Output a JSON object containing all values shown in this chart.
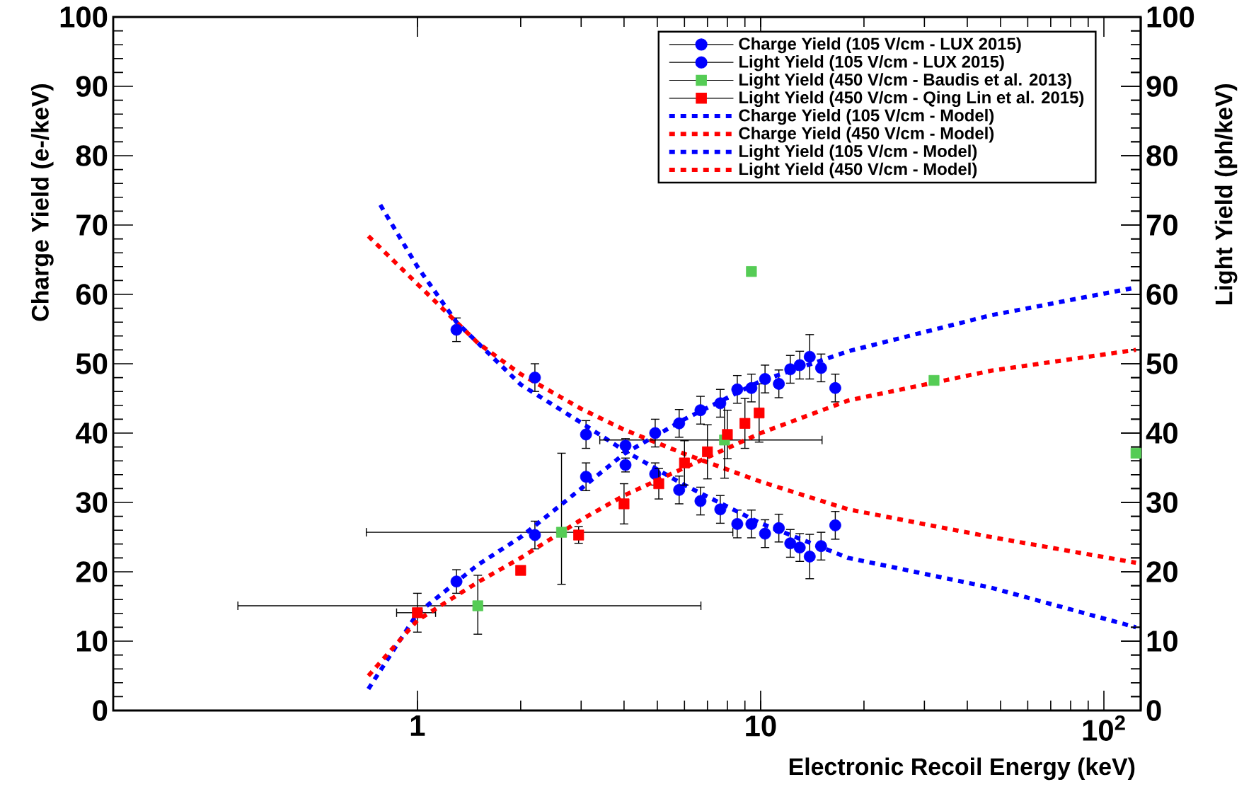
{
  "chart_data": {
    "type": "scatter",
    "xlabel": "Electronic Recoil Energy (keV)",
    "ylabel": "Charge Yield (e-/keV)",
    "y2label": "Light Yield (ph/keV)",
    "log": "x",
    "legend": "top right",
    "xlim": [
      0.13,
      128
    ],
    "xticks": [
      1,
      10,
      {
        "value": 100,
        "label": "10$^{2}$"
      }
    ],
    "ylim": [
      0,
      100
    ],
    "yticks": [
      0,
      10,
      20,
      30,
      40,
      50,
      60,
      70,
      80,
      90,
      100
    ],
    "y2lim": [
      0,
      100
    ],
    "y2ticks": [
      0,
      10,
      20,
      30,
      40,
      50,
      60,
      70,
      80,
      90,
      100
    ],
    "series": [
      {
        "name": "Charge Yield (105 V/cm - LUX 2015)",
        "color": "#0000ff",
        "marker": "circle",
        "x": [
          1.3,
          2.2,
          3.1,
          4.04,
          4.93,
          5.79,
          6.68,
          7.63,
          8.55,
          9.4,
          10.3,
          11.3,
          12.2,
          13.0,
          13.9,
          15.0,
          16.5
        ],
        "values": [
          54.9,
          48.0,
          39.8,
          35.4,
          34.1,
          31.8,
          30.2,
          29.0,
          26.9,
          26.9,
          25.5,
          26.3,
          24.1,
          23.5,
          22.2,
          23.7,
          26.7
        ],
        "errors": [
          1.7,
          2,
          2,
          1,
          1.6,
          2,
          2,
          2,
          2,
          2,
          2,
          2,
          2,
          2,
          3.2,
          2,
          2
        ]
      },
      {
        "name": "Light Yield (105 V/cm - LUX 2015)",
        "axis": "y2",
        "color": "#0000ff",
        "marker": "circle",
        "x": [
          1.3,
          2.2,
          3.1,
          4.04,
          4.93,
          5.79,
          6.68,
          7.63,
          8.55,
          9.4,
          10.3,
          11.3,
          12.2,
          13.0,
          13.9,
          15.0,
          16.5
        ],
        "values": [
          18.6,
          25.3,
          33.7,
          38.2,
          40.0,
          41.4,
          43.3,
          44.3,
          46.3,
          46.5,
          47.8,
          47.1,
          49.2,
          49.8,
          51.0,
          49.4,
          46.5
        ],
        "errors": [
          1.7,
          2,
          2,
          1,
          2,
          2,
          2,
          2,
          2,
          2,
          2,
          2,
          2,
          2,
          3.2,
          2,
          2
        ]
      },
      {
        "name": "Light Yield (450 V/cm - Baudis et al. 2013)",
        "axis": "y2",
        "color": "#55cc55",
        "marker": "square",
        "x": [
          1.5,
          2.63,
          7.85,
          9.4,
          32,
          124
        ],
        "values": [
          15.1,
          25.7,
          39.0,
          63.3,
          47.6,
          37.1
        ],
        "errors": [
          [
            11,
            19.5
          ],
          [
            18.2,
            37.1
          ],
          [
            33.5,
            44.9
          ],
          null,
          null,
          null
        ],
        "xerrors": [
          [
            0.3,
            6.7
          ],
          [
            0.71,
            8.3
          ],
          [
            3.4,
            15.1
          ],
          null,
          null,
          null
        ]
      },
      {
        "name": "Light Yield (450 V/cm - Qing Lin et al. 2015)",
        "axis": "y2",
        "color": "#ff0000",
        "marker": "square",
        "x": [
          1.0,
          2.0,
          2.95,
          4.0,
          5.05,
          6.0,
          7.0,
          8.0,
          9.0,
          9.9
        ],
        "values": [
          14.1,
          20.2,
          25.3,
          29.8,
          32.7,
          35.7,
          37.3,
          39.8,
          41.4,
          42.9
        ],
        "errors": [
          2.8,
          null,
          1.2,
          2.9,
          2.2,
          3.2,
          3.9,
          3.5,
          3.6,
          4.2
        ],
        "xerrors": [
          [
            0.87,
            1.13
          ],
          null,
          null,
          null,
          null,
          null,
          null,
          null,
          null,
          null
        ]
      },
      {
        "name": "Charge Yield (105 V/cm - Model)",
        "type": "line",
        "color": "#0000ff",
        "line_style": "dotted",
        "x": [
          0.78,
          1.0,
          1.3,
          2,
          3,
          4,
          6,
          10,
          18,
          47,
          124
        ],
        "values": [
          72.9,
          64,
          56,
          47,
          41.5,
          37.5,
          32.5,
          27,
          22,
          17.7,
          12
        ]
      },
      {
        "name": "Charge Yield (450 V/cm - Model)",
        "type": "line",
        "color": "#ff0000",
        "line_style": "dotted",
        "x": [
          0.72,
          1.0,
          1.5,
          2,
          3,
          4,
          6,
          10,
          18,
          47,
          124
        ],
        "values": [
          68.4,
          61.5,
          53,
          48.5,
          43.5,
          40.5,
          37,
          33,
          29,
          25,
          21.3
        ]
      },
      {
        "name": "Light Yield (105 V/cm - Model)",
        "type": "line",
        "axis": "y2",
        "color": "#0000ff",
        "line_style": "dotted",
        "x": [
          0.72,
          1.0,
          1.5,
          2,
          3,
          4,
          6,
          10,
          18,
          47,
          124
        ],
        "values": [
          3.1,
          14,
          21,
          25,
          32,
          37,
          42,
          47.5,
          51.8,
          57,
          61
        ]
      },
      {
        "name": "Light Yield (450 V/cm - Model)",
        "type": "line",
        "axis": "y2",
        "color": "#ff0000",
        "line_style": "dotted",
        "x": [
          0.72,
          1.0,
          1.5,
          2,
          3,
          4,
          6,
          10,
          18,
          47,
          124
        ],
        "values": [
          5,
          13,
          18.5,
          22,
          27.5,
          31,
          35,
          40,
          44.7,
          49,
          52
        ]
      }
    ]
  }
}
